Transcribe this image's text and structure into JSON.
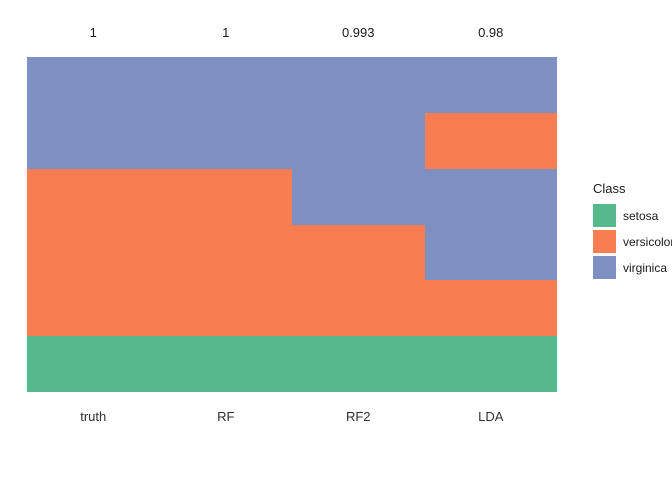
{
  "chart_data": {
    "type": "bar",
    "subtype": "stacked-class-membership-comparison",
    "title": "",
    "xlabel": "",
    "ylabel": "",
    "grid": false,
    "legend_position": "right",
    "categories": [
      "truth",
      "RF",
      "RF2",
      "LDA"
    ],
    "top_annotations": [
      "1",
      "1",
      "0.993",
      "0.98"
    ],
    "legend": {
      "title": "Class",
      "entries": [
        {
          "label": "setosa",
          "color": "#55B98C"
        },
        {
          "label": "versicolor",
          "color": "#F87D52"
        },
        {
          "label": "virginica",
          "color": "#7E90C2"
        }
      ]
    },
    "columns": [
      {
        "label": "truth",
        "annotation": "1",
        "segments": [
          {
            "class": "virginica",
            "fraction": 0.3333
          },
          {
            "class": "versicolor",
            "fraction": 0.5
          },
          {
            "class": "setosa",
            "fraction": 0.1667
          }
        ]
      },
      {
        "label": "RF",
        "annotation": "1",
        "segments": [
          {
            "class": "virginica",
            "fraction": 0.3333
          },
          {
            "class": "versicolor",
            "fraction": 0.5
          },
          {
            "class": "setosa",
            "fraction": 0.1667
          }
        ]
      },
      {
        "label": "RF2",
        "annotation": "0.993",
        "segments": [
          {
            "class": "virginica",
            "fraction": 0.5
          },
          {
            "class": "versicolor",
            "fraction": 0.3333
          },
          {
            "class": "setosa",
            "fraction": 0.1667
          }
        ]
      },
      {
        "label": "LDA",
        "annotation": "0.98",
        "segments": [
          {
            "class": "virginica",
            "fraction": 0.1667
          },
          {
            "class": "versicolor",
            "fraction": 0.1667
          },
          {
            "class": "virginica",
            "fraction": 0.3333
          },
          {
            "class": "versicolor",
            "fraction": 0.1667
          },
          {
            "class": "setosa",
            "fraction": 0.1667
          }
        ]
      }
    ]
  }
}
